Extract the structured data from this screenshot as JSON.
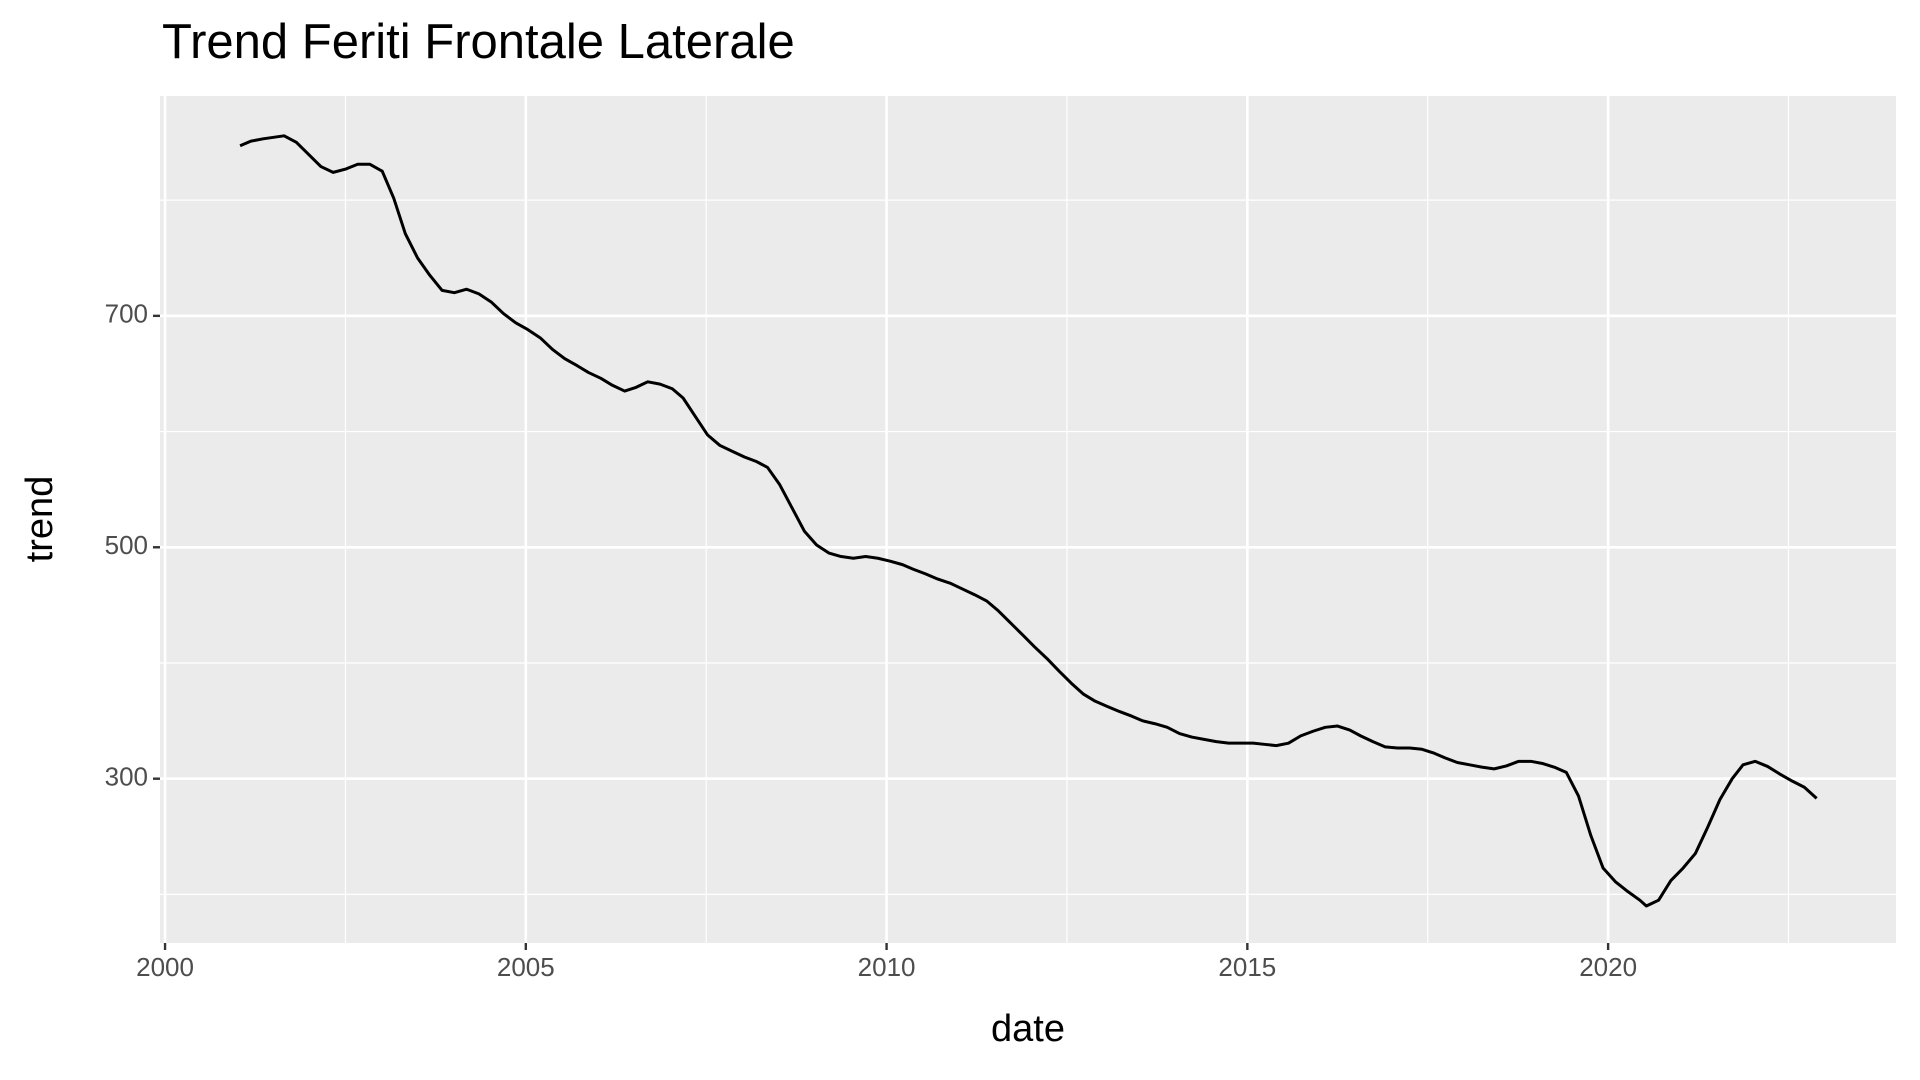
{
  "chart_data": {
    "type": "line",
    "title": "Trend Feriti Frontale Laterale",
    "x_label": "date",
    "y_label": "trend",
    "xlim": [
      1999.93,
      2023.99
    ],
    "ylim": [
      158,
      890
    ],
    "xticks": [
      2000,
      2005,
      2010,
      2015,
      2020
    ],
    "yticks": [
      300,
      500,
      700
    ],
    "grid": true,
    "series": [
      {
        "name": "trend",
        "color": "#000000",
        "x": [
          2001.04,
          2001.19,
          2001.36,
          2001.65,
          2001.82,
          2002.16,
          2002.33,
          2002.51,
          2002.67,
          2002.84,
          2003.01,
          2003.17,
          2003.33,
          2003.5,
          2003.67,
          2003.84,
          2004.01,
          2004.18,
          2004.35,
          2004.52,
          2004.69,
          2004.86,
          2005.03,
          2005.2,
          2005.37,
          2005.54,
          2005.71,
          2005.87,
          2006.04,
          2006.2,
          2006.37,
          2006.52,
          2006.69,
          2006.86,
          2007.03,
          2007.18,
          2007.35,
          2007.52,
          2007.69,
          2007.86,
          2008.03,
          2008.2,
          2008.35,
          2008.52,
          2008.69,
          2008.86,
          2009.03,
          2009.2,
          2009.37,
          2009.54,
          2009.71,
          2009.88,
          2010.05,
          2010.22,
          2010.37,
          2010.54,
          2010.71,
          2010.88,
          2011.05,
          2011.22,
          2011.39,
          2011.55,
          2011.72,
          2011.89,
          2012.05,
          2012.22,
          2012.39,
          2012.56,
          2012.73,
          2012.89,
          2013.06,
          2013.23,
          2013.4,
          2013.55,
          2013.72,
          2013.89,
          2014.06,
          2014.23,
          2014.4,
          2014.57,
          2014.74,
          2014.91,
          2015.08,
          2015.25,
          2015.4,
          2015.57,
          2015.74,
          2015.91,
          2016.08,
          2016.25,
          2016.42,
          2016.57,
          2016.74,
          2016.91,
          2017.08,
          2017.25,
          2017.42,
          2017.59,
          2017.74,
          2017.91,
          2018.08,
          2018.25,
          2018.42,
          2018.59,
          2018.76,
          2018.93,
          2019.1,
          2019.27,
          2019.42,
          2019.59,
          2019.76,
          2019.93,
          2020.1,
          2020.27,
          2020.44,
          2020.53,
          2020.7,
          2020.87,
          2021.04,
          2021.21,
          2021.38,
          2021.55,
          2021.72,
          2021.87,
          2022.04,
          2022.21,
          2022.38,
          2022.55,
          2022.72,
          2022.89
        ],
        "values": [
          847,
          851,
          853,
          855.6,
          850,
          829,
          824,
          827,
          831,
          831,
          825,
          801.6,
          771,
          750,
          735,
          722,
          720,
          723,
          719,
          712,
          702,
          694,
          688,
          681,
          671,
          663,
          657,
          651,
          646,
          640,
          635,
          638,
          643,
          641,
          637,
          629,
          613,
          597,
          588,
          583,
          578,
          574,
          569,
          554,
          534,
          514,
          502,
          495,
          492,
          490.5,
          492,
          490.5,
          488,
          485,
          481,
          477,
          472.5,
          469,
          464,
          459,
          453.5,
          445,
          434.5,
          424,
          414,
          404,
          393,
          382.5,
          373,
          367,
          362.4,
          358,
          354,
          350,
          347.5,
          344.4,
          339,
          336,
          334,
          332,
          330.7,
          330.7,
          330.7,
          329.6,
          328.6,
          330.7,
          337,
          341,
          344.4,
          345.5,
          342,
          337,
          332,
          327.5,
          326.5,
          326.5,
          325.4,
          322,
          318,
          314,
          312,
          310,
          308.5,
          311,
          315,
          315,
          313,
          309.6,
          305.5,
          285,
          251,
          222.8,
          211,
          202.6,
          195,
          190,
          195,
          212,
          222.8,
          235.4,
          258,
          282,
          300,
          312,
          315,
          310.6,
          304,
          298,
          292.6,
          283
        ]
      }
    ]
  }
}
